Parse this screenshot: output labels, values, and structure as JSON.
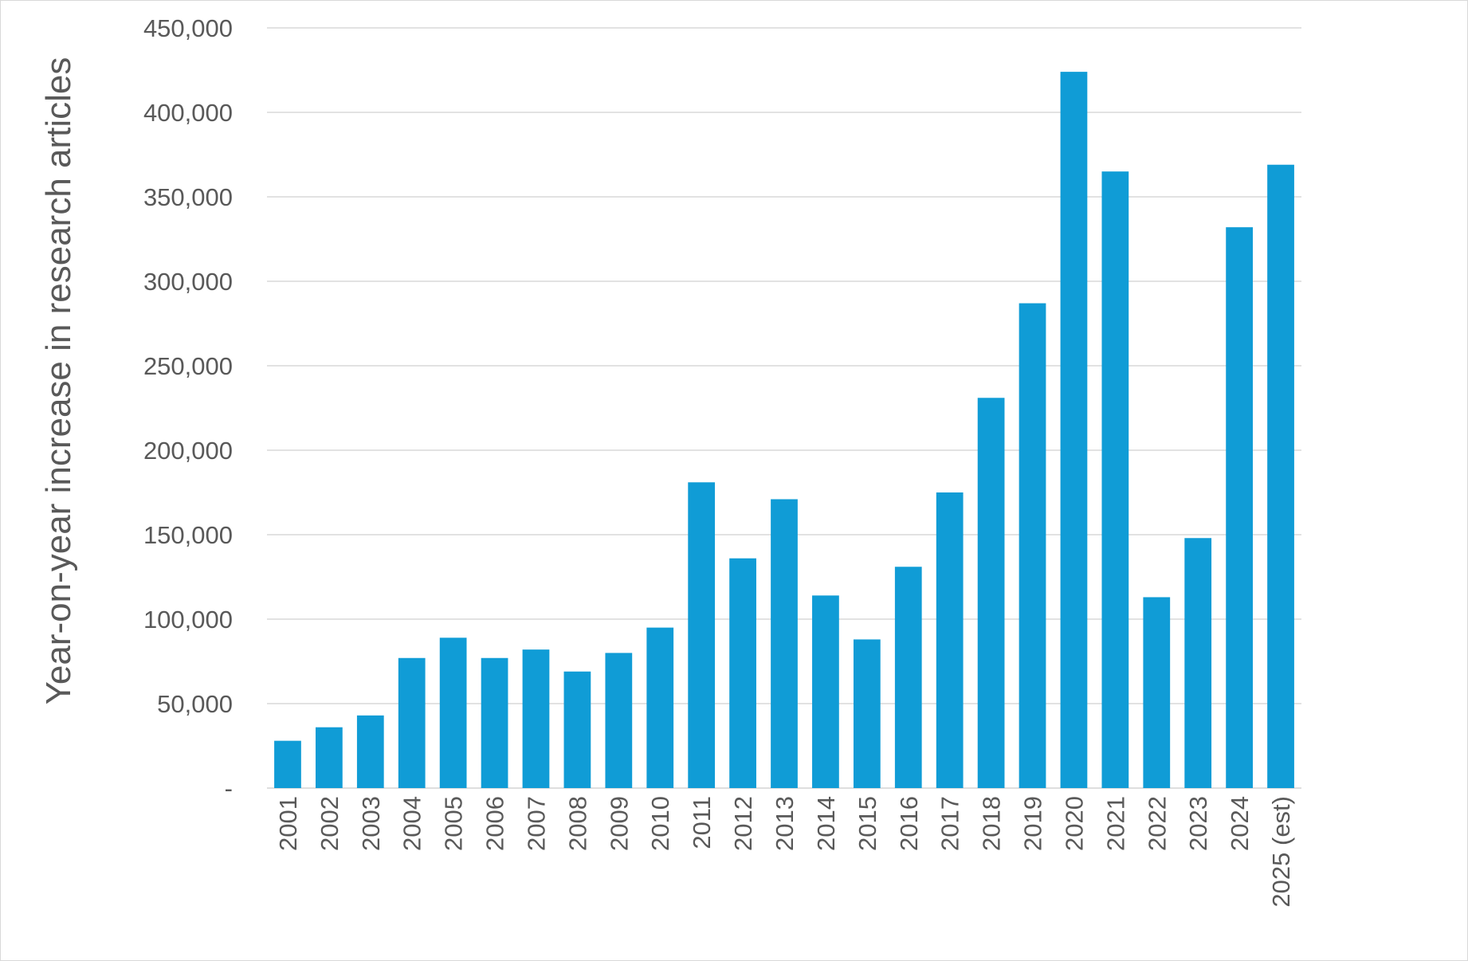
{
  "chart_data": {
    "type": "bar",
    "ylabel": "Year-on-year increase in research articles",
    "categories": [
      "2001",
      "2002",
      "2003",
      "2004",
      "2005",
      "2006",
      "2007",
      "2008",
      "2009",
      "2010",
      "2011",
      "2012",
      "2013",
      "2014",
      "2015",
      "2016",
      "2017",
      "2018",
      "2019",
      "2020",
      "2021",
      "2022",
      "2023",
      "2024",
      "2025 (est)"
    ],
    "values": [
      28000,
      36000,
      43000,
      77000,
      89000,
      77000,
      82000,
      69000,
      80000,
      95000,
      181000,
      136000,
      171000,
      114000,
      88000,
      131000,
      175000,
      231000,
      287000,
      424000,
      365000,
      113000,
      148000,
      332000,
      369000
    ],
    "ylim": [
      0,
      450000
    ],
    "yticks": [
      0,
      50000,
      100000,
      150000,
      200000,
      250000,
      300000,
      350000,
      400000,
      450000
    ],
    "ytick_labels": [
      "-",
      "50,000",
      "100,000",
      "150,000",
      "200,000",
      "250,000",
      "300,000",
      "350,000",
      "400,000",
      "450,000"
    ],
    "grid": true,
    "bar_color": "#109cd6",
    "grid_color": "#d9d9d9",
    "text_color": "#595959"
  }
}
